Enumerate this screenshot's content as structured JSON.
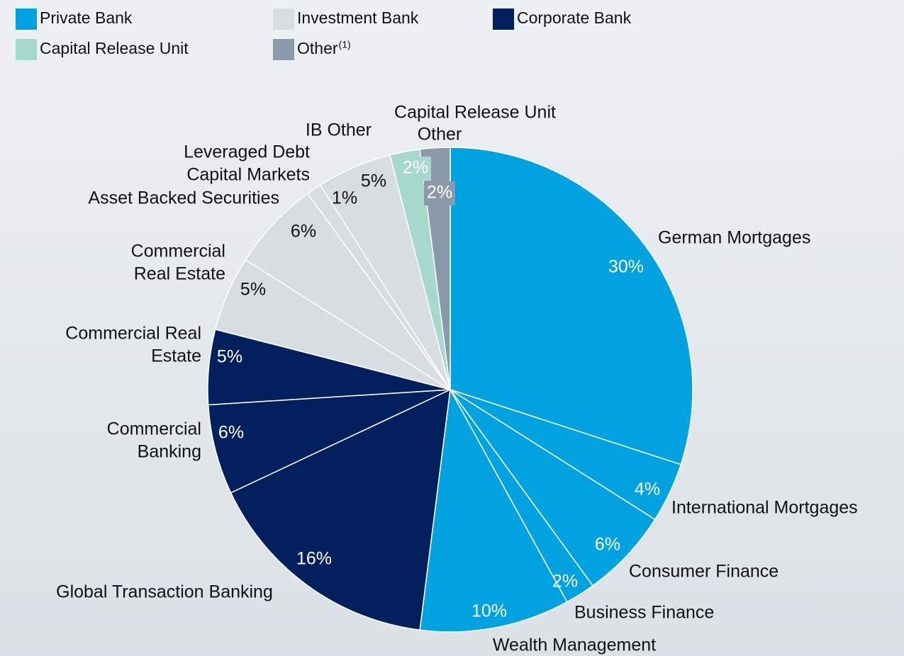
{
  "chart_data": {
    "type": "pie",
    "legend": [
      {
        "name": "Private Bank",
        "color": "#00a3e0",
        "label_color": "#ffffff"
      },
      {
        "name": "Investment Bank",
        "color": "#d8dde2",
        "label_color": "#111111"
      },
      {
        "name": "Corporate Bank",
        "color": "#02205e",
        "label_color": "#ffffff"
      },
      {
        "name": "Capital Release Unit",
        "color": "#a6d9cb",
        "label_color": "#ffffff"
      },
      {
        "name": "Other",
        "footnote_marker": "(1)",
        "color": "#8b9aab",
        "label_color": "#ffffff"
      }
    ],
    "labels": [
      [
        "German Mortgages"
      ],
      [
        "International Mortgages"
      ],
      [
        "Consumer Finance"
      ],
      [
        "Business Finance"
      ],
      [
        "Wealth Management"
      ],
      [
        "Global Transaction Banking"
      ],
      [
        "Commercial",
        "Banking"
      ],
      [
        "Commercial Real",
        "Estate"
      ],
      [
        "Commercial",
        "Real Estate"
      ],
      [
        "Asset Backed Securities"
      ],
      [
        "Leveraged Debt",
        "Capital Markets"
      ],
      [
        "IB Other"
      ],
      [
        "Capital Release Unit"
      ],
      [
        "Other"
      ]
    ],
    "groups": [
      0,
      0,
      0,
      0,
      0,
      2,
      2,
      2,
      1,
      1,
      1,
      1,
      3,
      4
    ],
    "values": [
      30,
      4,
      6,
      2,
      10,
      16,
      6,
      5,
      5,
      6,
      1,
      5,
      2,
      2
    ],
    "value_labels": [
      "30%",
      "4%",
      "6%",
      "2%",
      "10%",
      "16%",
      "6%",
      "5%",
      "5%",
      "6%",
      "1%",
      "5%",
      "2%",
      "2%"
    ]
  }
}
